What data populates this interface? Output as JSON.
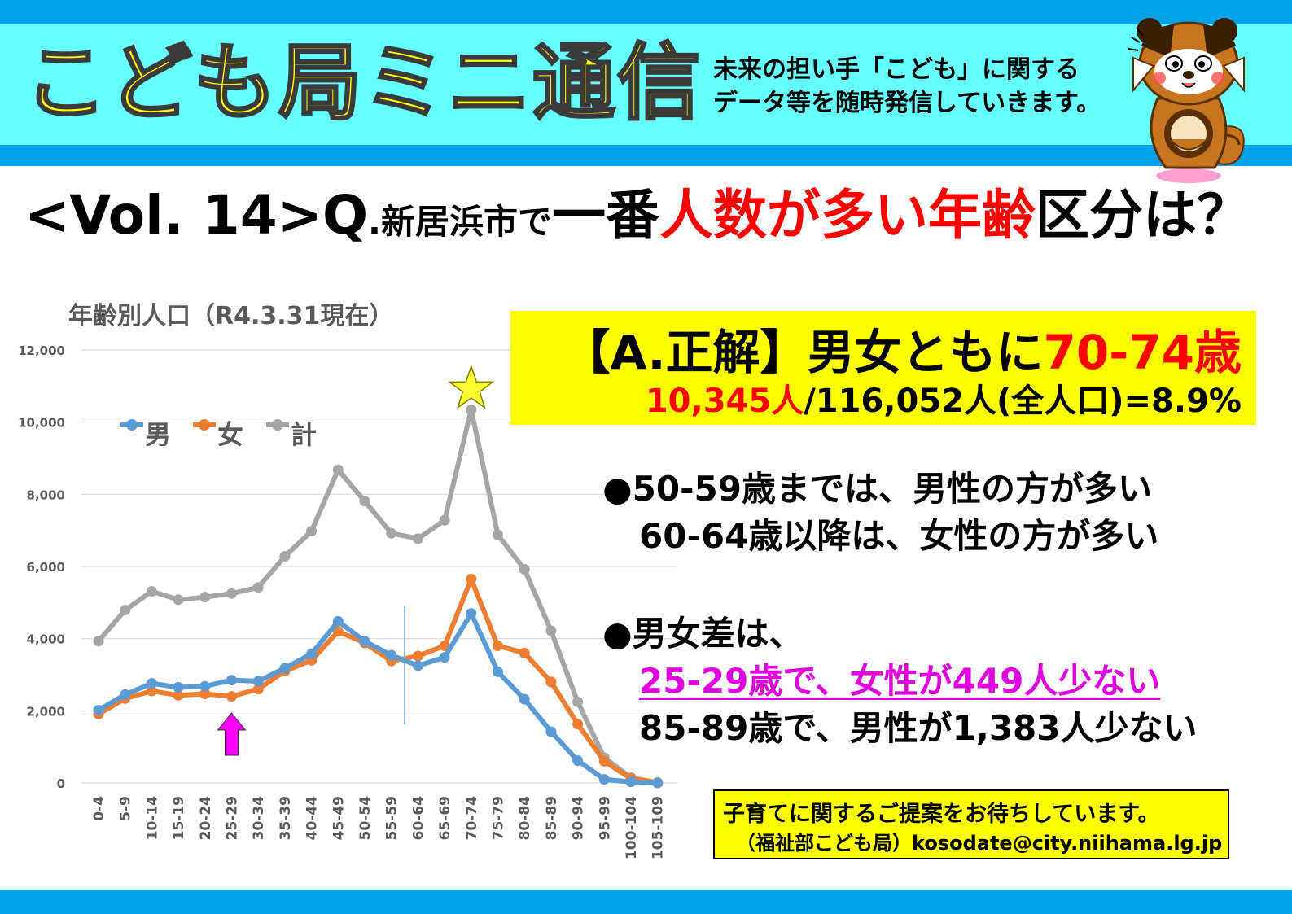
{
  "header": {
    "title": "こども局ミニ通信",
    "subtitle_line1": "未来の担い手「こども」に関する",
    "subtitle_line2": "データ等を随時発信していきます。"
  },
  "question": {
    "vol": "<Vol. 14>",
    "q": "Q",
    "dot": ".",
    "city": "新居浜市で",
    "part1": "一番",
    "part2_red": "人数が多い年齢",
    "part3": "区分は？"
  },
  "answer": {
    "main_black": "【A.正解】男女ともに",
    "main_red": "70-74歳",
    "sub_red": "10,345人",
    "sub_black": "/116,052人(全人口)=8.9%"
  },
  "bullets": {
    "b1_line1": "●50-59歳までは、男性の方が多い",
    "b1_line2": "60-64歳以降は、女性の方が多い",
    "b2_line1": "●男女差は、",
    "b2_line2": "25-29歳で、女性が449人少ない",
    "b2_line3": "85-89歳で、男性が1,383人少ない"
  },
  "contact": {
    "line1": "子育てに関するご提案をお待ちしています。",
    "line2": "（福祉部こども局）kosodate@city.niihama.lg.jp"
  },
  "chart_data": {
    "type": "line",
    "title": "年齢別人口（R4.3.31現在）",
    "categories": [
      "0-4",
      "5-9",
      "10-14",
      "15-19",
      "20-24",
      "25-29",
      "30-34",
      "35-39",
      "40-44",
      "45-49",
      "50-54",
      "55-59",
      "60-64",
      "65-69",
      "70-74",
      "75-79",
      "80-84",
      "85-89",
      "90-94",
      "95-99",
      "100-104",
      "105-109"
    ],
    "series": [
      {
        "name": "男",
        "color": "#5b9bd5",
        "values": [
          2020,
          2450,
          2760,
          2650,
          2680,
          2850,
          2820,
          3180,
          3580,
          4480,
          3930,
          3540,
          3250,
          3480,
          4700,
          3080,
          2320,
          1420,
          620,
          100,
          30,
          0
        ]
      },
      {
        "name": "女",
        "color": "#ed7d31",
        "values": [
          1910,
          2340,
          2550,
          2430,
          2470,
          2400,
          2600,
          3100,
          3400,
          4200,
          3880,
          3380,
          3520,
          3800,
          5650,
          3800,
          3600,
          2800,
          1630,
          600,
          120,
          10
        ]
      },
      {
        "name": "計",
        "color": "#a5a5a5",
        "values": [
          3930,
          4790,
          5310,
          5080,
          5150,
          5250,
          5420,
          6280,
          6980,
          8680,
          7810,
          6920,
          6770,
          7280,
          10345,
          6880,
          5920,
          4220,
          2250,
          700,
          150,
          10
        ]
      }
    ],
    "ylim": [
      0,
      12000
    ],
    "yticks": [
      0,
      2000,
      4000,
      6000,
      8000,
      10000,
      12000
    ],
    "ytick_labels": [
      "0",
      "2,000",
      "4,000",
      "6,000",
      "8,000",
      "10,000",
      "12,000"
    ],
    "grid": true,
    "legend": "top-left",
    "markers": {
      "star_category": "70-74",
      "arrow_category": "25-29",
      "divider_between": [
        "55-59",
        "60-64"
      ]
    }
  }
}
